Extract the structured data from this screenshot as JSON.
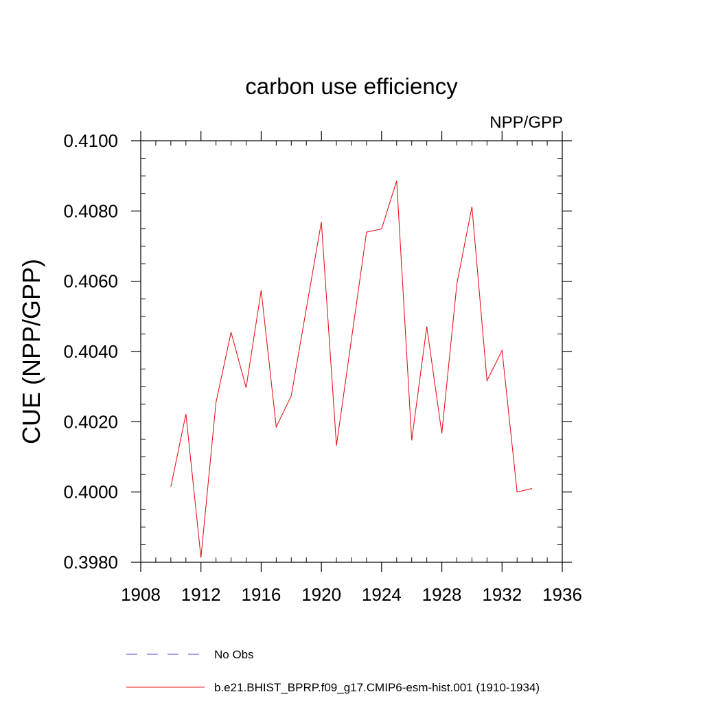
{
  "chart_data": {
    "type": "line",
    "title": "carbon use efficiency",
    "subtitle": "NPP/GPP",
    "xlabel": "",
    "ylabel": "CUE  (NPP/GPP)",
    "xlim": [
      1908,
      1936
    ],
    "ylim": [
      0.398,
      0.41
    ],
    "x_ticks": [
      1908,
      1912,
      1916,
      1920,
      1924,
      1928,
      1932,
      1936
    ],
    "x_tick_labels": [
      "1908",
      "1912",
      "1916",
      "1920",
      "1924",
      "1928",
      "1932",
      "1936"
    ],
    "y_ticks": [
      0.398,
      0.4,
      0.402,
      0.404,
      0.406,
      0.408,
      0.41
    ],
    "y_tick_labels": [
      "0.3980",
      "0.4000",
      "0.4020",
      "0.4040",
      "0.4060",
      "0.4080",
      "0.4100"
    ],
    "grid": false,
    "legend_position": "bottom",
    "series": [
      {
        "name": "b.e21.BHIST_BPRP.f09_g17.CMIP6-esm-hist.001 (1910-1934)",
        "color": "#e8141a",
        "dash": "solid",
        "x": [
          1910,
          1911,
          1912,
          1913,
          1914,
          1915,
          1916,
          1917,
          1918,
          1919,
          1920,
          1921,
          1922,
          1923,
          1924,
          1925,
          1926,
          1927,
          1928,
          1929,
          1930,
          1931,
          1932,
          1933,
          1934
        ],
        "values": [
          0.40015,
          0.40222,
          0.39813,
          0.40255,
          0.40455,
          0.40297,
          0.40574,
          0.40185,
          0.40274,
          0.40522,
          0.40769,
          0.40132,
          0.40436,
          0.4074,
          0.40749,
          0.40886,
          0.40147,
          0.40471,
          0.40167,
          0.40593,
          0.40812,
          0.40317,
          0.40403,
          0.4,
          0.4001
        ]
      }
    ],
    "legend": [
      {
        "label": "No Obs",
        "color": "#4b4bc8",
        "dash": "dashed"
      },
      {
        "label": "b.e21.BHIST_BPRP.f09_g17.CMIP6-esm-hist.001 (1910-1934)",
        "color": "#e8141a",
        "dash": "solid"
      }
    ]
  }
}
